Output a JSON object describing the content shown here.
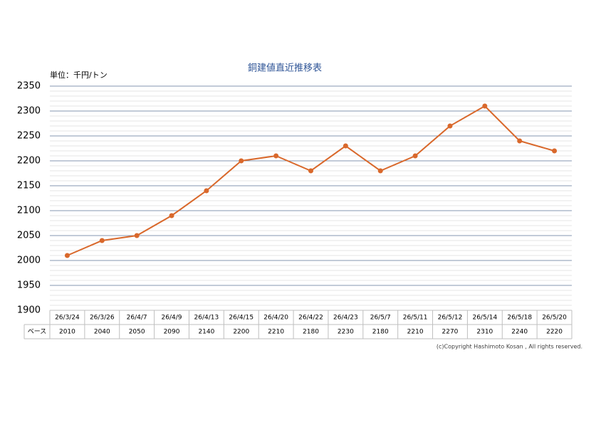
{
  "chart_data": {
    "type": "line",
    "title": "銅建値直近推移表",
    "unit_label": "単位：千円/トン",
    "categories": [
      "26/3/24",
      "26/3/26",
      "26/4/7",
      "26/4/9",
      "26/4/13",
      "26/4/15",
      "26/4/20",
      "26/4/22",
      "26/4/23",
      "26/5/7",
      "26/5/11",
      "26/5/12",
      "26/5/14",
      "26/5/18",
      "26/5/20"
    ],
    "values": [
      2010,
      2040,
      2050,
      2090,
      2140,
      2200,
      2210,
      2180,
      2230,
      2180,
      2210,
      2270,
      2310,
      2240,
      2220
    ],
    "color": "#d9682b",
    "ylim": [
      1900,
      2350
    ],
    "yticks": [
      1900,
      1950,
      2000,
      2050,
      2100,
      2150,
      2200,
      2250,
      2300,
      2350
    ],
    "grid": true,
    "table_row_label": "ベース",
    "copyright": "(c)Copyright Hashimoto Kosan , All rights reserved."
  }
}
